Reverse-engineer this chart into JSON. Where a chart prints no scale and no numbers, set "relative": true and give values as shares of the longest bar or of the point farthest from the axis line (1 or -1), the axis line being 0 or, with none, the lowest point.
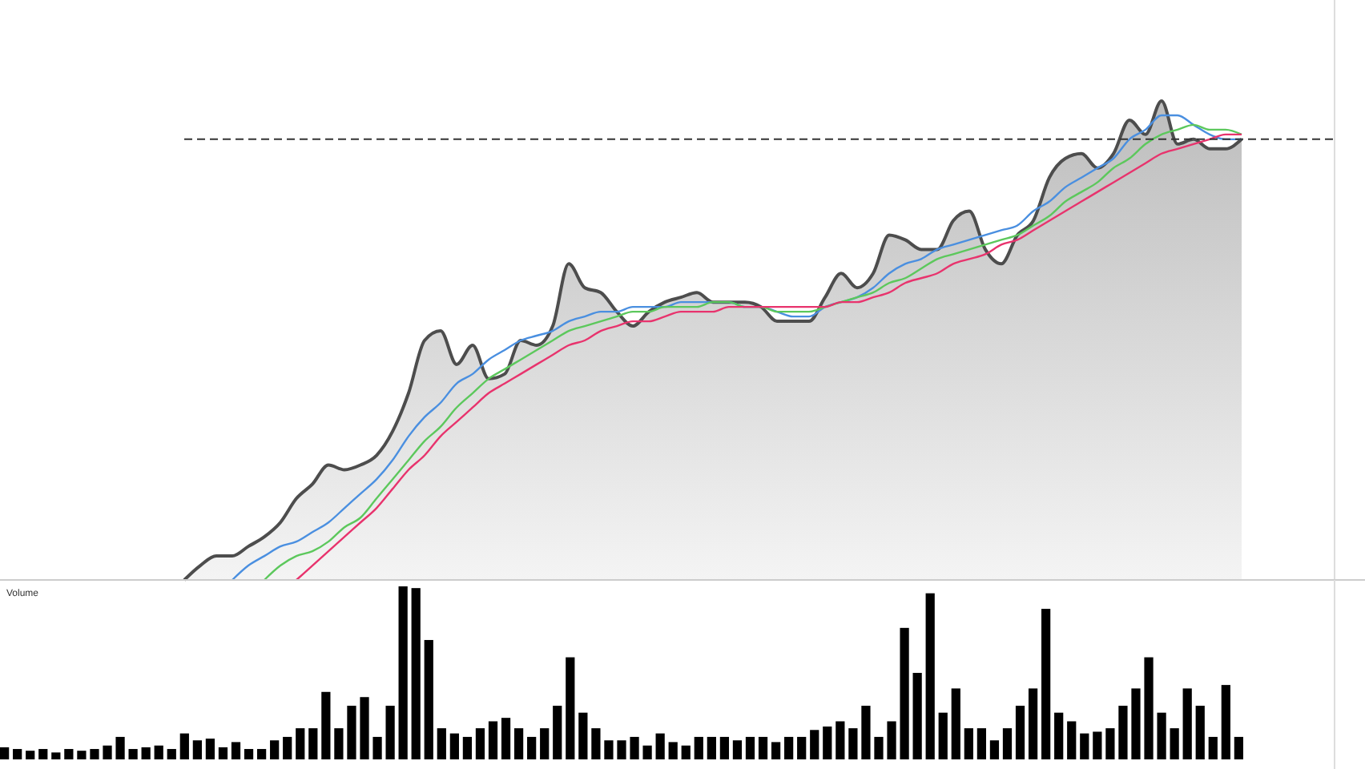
{
  "chart_data": [
    {
      "type": "line",
      "relative": true,
      "categories": [
        null,
        null,
        null,
        null,
        null,
        null,
        null,
        null,
        null,
        null,
        null,
        null,
        null,
        null,
        null,
        null,
        null,
        null,
        null,
        null,
        null,
        null,
        null,
        null,
        null,
        null,
        null,
        null,
        null,
        null,
        null,
        null,
        null,
        null,
        null,
        null,
        null,
        null,
        null,
        null,
        null,
        null,
        null,
        null,
        null,
        null,
        null,
        null,
        null,
        null,
        null,
        null,
        null,
        null,
        null,
        null,
        null,
        null,
        null,
        null,
        null,
        null,
        null,
        null,
        null,
        null,
        null
      ],
      "series": [
        {
          "type": "area",
          "color": "#4d4d4d",
          "values": [
            0,
            0.03,
            0.05,
            0.05,
            0.07,
            0.09,
            0.12,
            0.17,
            0.2,
            0.24,
            0.23,
            0.24,
            0.26,
            0.31,
            0.39,
            0.5,
            0.52,
            0.45,
            0.49,
            0.42,
            0.43,
            0.5,
            0.49,
            0.53,
            0.66,
            0.61,
            0.6,
            0.56,
            0.53,
            0.56,
            0.58,
            0.59,
            0.6,
            0.58,
            0.58,
            0.58,
            0.57,
            0.54,
            0.54,
            0.54,
            0.59,
            0.64,
            0.61,
            0.64,
            0.72,
            0.71,
            0.69,
            0.69,
            0.75,
            0.77,
            0.69,
            0.66,
            0.72,
            0.75,
            0.84,
            0.88,
            0.89,
            0.86,
            0.89,
            0.96,
            0.93,
            1.0,
            0.91,
            0.92,
            0.9,
            0.9,
            0.92
          ]
        },
        {
          "color": "#4a8fe0",
          "values": [
            null,
            null,
            null,
            0,
            0.03,
            0.05,
            0.07,
            0.08,
            0.1,
            0.12,
            0.15,
            0.18,
            0.21,
            0.25,
            0.3,
            0.34,
            0.37,
            0.41,
            0.43,
            0.46,
            0.48,
            0.5,
            0.51,
            0.52,
            0.54,
            0.55,
            0.56,
            0.56,
            0.57,
            0.57,
            0.57,
            0.58,
            0.58,
            0.58,
            0.58,
            0.57,
            0.57,
            0.56,
            0.55,
            0.55,
            0.57,
            0.58,
            0.59,
            0.61,
            0.64,
            0.66,
            0.67,
            0.69,
            0.7,
            0.71,
            0.72,
            0.73,
            0.74,
            0.77,
            0.79,
            0.82,
            0.84,
            0.86,
            0.88,
            0.92,
            0.94,
            0.97,
            0.97,
            0.95,
            0.93,
            0.92,
            0.92
          ]
        },
        {
          "color": "#5cc85c",
          "values": [
            null,
            null,
            null,
            null,
            null,
            0,
            0.03,
            0.05,
            0.06,
            0.08,
            0.11,
            0.13,
            0.17,
            0.21,
            0.25,
            0.29,
            0.32,
            0.36,
            0.39,
            0.42,
            0.44,
            0.46,
            0.48,
            0.5,
            0.52,
            0.53,
            0.54,
            0.55,
            0.56,
            0.56,
            0.57,
            0.57,
            0.57,
            0.58,
            0.58,
            0.57,
            0.57,
            0.56,
            0.56,
            0.56,
            0.57,
            0.58,
            0.59,
            0.6,
            0.62,
            0.63,
            0.65,
            0.67,
            0.68,
            0.69,
            0.7,
            0.71,
            0.72,
            0.74,
            0.76,
            0.79,
            0.81,
            0.83,
            0.86,
            0.88,
            0.91,
            0.93,
            0.94,
            0.95,
            0.94,
            0.94,
            0.93
          ]
        },
        {
          "color": "#e8336d",
          "values": [
            null,
            null,
            null,
            null,
            null,
            null,
            null,
            0,
            0.03,
            0.06,
            0.09,
            0.12,
            0.15,
            0.19,
            0.23,
            0.26,
            0.3,
            0.33,
            0.36,
            0.39,
            0.41,
            0.43,
            0.45,
            0.47,
            0.49,
            0.5,
            0.52,
            0.53,
            0.54,
            0.54,
            0.55,
            0.56,
            0.56,
            0.56,
            0.57,
            0.57,
            0.57,
            0.57,
            0.57,
            0.57,
            0.57,
            0.58,
            0.58,
            0.59,
            0.6,
            0.62,
            0.63,
            0.64,
            0.66,
            0.67,
            0.68,
            0.7,
            0.71,
            0.73,
            0.75,
            0.77,
            0.79,
            0.81,
            0.83,
            0.85,
            0.87,
            0.89,
            0.9,
            0.91,
            0.92,
            0.93,
            0.93
          ]
        }
      ],
      "ref_lines": [
        {
          "axis": "y",
          "value": 0.92,
          "line_style": "dashed",
          "color": "#333333"
        }
      ]
    },
    {
      "type": "bar",
      "title": "Volume",
      "relative": true,
      "color": "#000000",
      "categories": [
        null,
        null,
        null,
        null,
        null,
        null,
        null,
        null,
        null,
        null,
        null,
        null,
        null,
        null,
        null,
        null,
        null,
        null,
        null,
        null,
        null,
        null,
        null,
        null,
        null,
        null,
        null,
        null,
        null,
        null,
        null,
        null,
        null,
        null,
        null,
        null,
        null,
        null,
        null,
        null,
        null,
        null,
        null,
        null,
        null,
        null,
        null,
        null,
        null,
        null,
        null,
        null,
        null,
        null,
        null,
        null,
        null,
        null,
        null,
        null,
        null,
        null,
        null,
        null,
        null,
        null,
        null,
        null,
        null,
        null,
        null,
        null,
        null,
        null,
        null,
        null,
        null,
        null,
        null,
        null,
        null,
        null,
        null,
        null,
        null,
        null,
        null,
        null,
        null,
        null,
        null,
        null,
        null,
        null,
        null,
        null,
        null
      ],
      "values": [
        0.07,
        0.06,
        0.05,
        0.06,
        0.04,
        0.06,
        0.05,
        0.06,
        0.08,
        0.13,
        0.06,
        0.07,
        0.08,
        0.06,
        0.15,
        0.11,
        0.12,
        0.07,
        0.1,
        0.06,
        0.06,
        0.11,
        0.13,
        0.18,
        0.18,
        0.39,
        0.18,
        0.31,
        0.36,
        0.13,
        0.31,
        1.0,
        0.99,
        0.69,
        0.18,
        0.15,
        0.13,
        0.18,
        0.22,
        0.24,
        0.18,
        0.13,
        0.18,
        0.31,
        0.59,
        0.27,
        0.18,
        0.11,
        0.11,
        0.13,
        0.08,
        0.15,
        0.1,
        0.08,
        0.13,
        0.13,
        0.13,
        0.11,
        0.13,
        0.13,
        0.1,
        0.13,
        0.13,
        0.17,
        0.19,
        0.22,
        0.18,
        0.31,
        0.13,
        0.22,
        0.76,
        0.5,
        0.96,
        0.27,
        0.41,
        0.18,
        0.18,
        0.11,
        0.18,
        0.31,
        0.41,
        0.87,
        0.27,
        0.22,
        0.15,
        0.16,
        0.18,
        0.31,
        0.41,
        0.59,
        0.27,
        0.18,
        0.41,
        0.31,
        0.13,
        0.43,
        0.13
      ]
    }
  ]
}
